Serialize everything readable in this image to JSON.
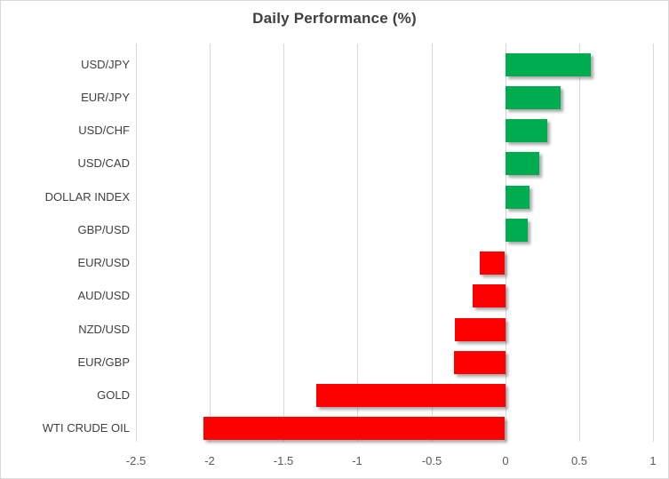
{
  "chart_data": {
    "type": "bar",
    "orientation": "horizontal",
    "title": "Daily Performance (%)",
    "categories": [
      "USD/JPY",
      "EUR/JPY",
      "USD/CHF",
      "USD/CAD",
      "DOLLAR INDEX",
      "GBP/USD",
      "EUR/USD",
      "AUD/USD",
      "NZD/USD",
      "EUR/GBP",
      "GOLD",
      "WTI CRUDE OIL"
    ],
    "values": [
      0.58,
      0.37,
      0.28,
      0.23,
      0.16,
      0.15,
      -0.17,
      -0.22,
      -0.34,
      -0.35,
      -1.28,
      -2.04
    ],
    "xlabel": "",
    "ylabel": "",
    "xlim": [
      -2.5,
      1.0
    ],
    "tick_step": 0.5,
    "tick_labels": [
      "-2.5",
      "-2",
      "-1.5",
      "-1",
      "-0.5",
      "0",
      "0.5",
      "1"
    ],
    "grid": "vertical-gridlines-on",
    "legend": "none",
    "colors": {
      "positive_bar": "#00AC50",
      "negative_bar": "#FF0000",
      "gridline": "#D9D9D9",
      "axis_line": "#D9D9D9",
      "title_text": "#404040",
      "category_text": "#404040",
      "tick_text": "#595959",
      "chart_border": "#D9D9D9",
      "background": "#FFFFFF"
    }
  }
}
